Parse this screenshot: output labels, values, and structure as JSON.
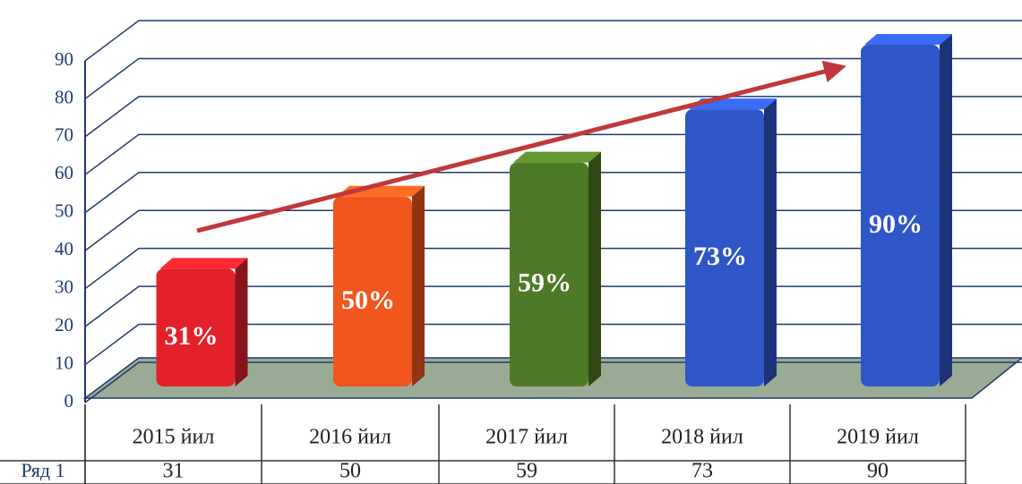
{
  "chart_data": {
    "type": "bar3d",
    "categories": [
      "2015 йил",
      "2016 йил",
      "2017 йил",
      "2018 йил",
      "2019 йил"
    ],
    "series": [
      {
        "name": "Ряд 1",
        "values": [
          31,
          50,
          59,
          73,
          90
        ],
        "value_labels": [
          "31%",
          "50%",
          "59%",
          "73%",
          "90%"
        ],
        "colors": [
          "#e3212b",
          "#f0561e",
          "#4e7a27",
          "#2f56c6",
          "#2f56c6"
        ]
      }
    ],
    "ylim": [
      0,
      90
    ],
    "yticks": [
      0,
      10,
      20,
      30,
      40,
      50,
      60,
      70,
      80,
      90
    ],
    "grid": true
  }
}
